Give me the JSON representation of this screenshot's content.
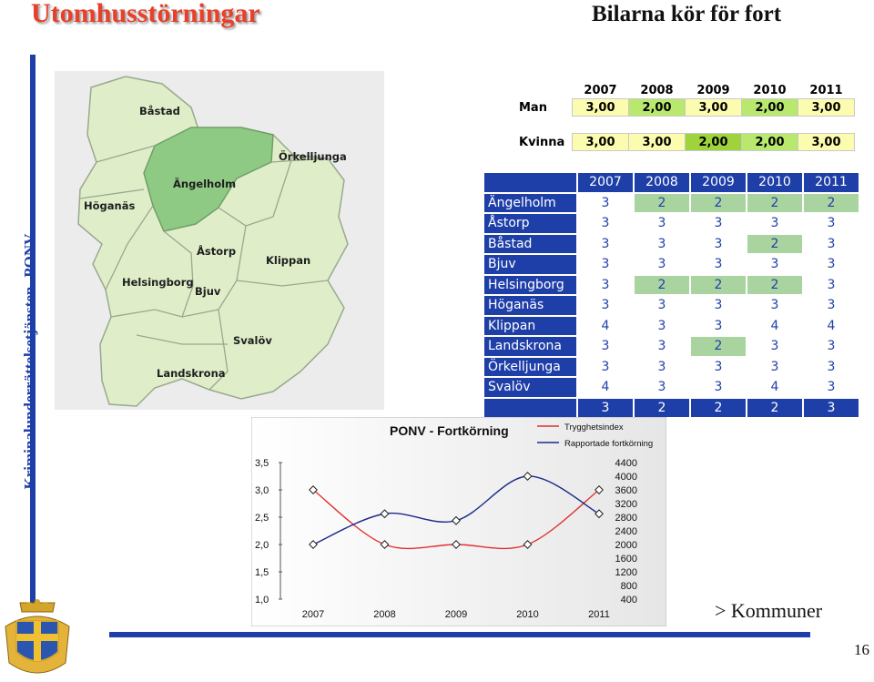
{
  "header": {
    "title": "Utomhusstörningar",
    "subtitle": "Bilarna kör för fort"
  },
  "side": {
    "vertical_label": "Kriminalunderrättelsetjänsten- PONV"
  },
  "footer": {
    "link": "> Kommuner",
    "page_number": "16"
  },
  "map": {
    "labels": [
      "Båstad",
      "Ängelholm",
      "Örkelljunga",
      "Höganäs",
      "Åstorp",
      "Klippan",
      "Helsingborg",
      "Bjuv",
      "Svalöv",
      "Landskrona"
    ],
    "highlighted": "Ängelholm",
    "colors": {
      "region": "#dfeec9",
      "highlight": "#8fca84",
      "border": "#9aa88f"
    }
  },
  "small_table": {
    "years": [
      "2007",
      "2008",
      "2009",
      "2010",
      "2011"
    ],
    "rows": [
      {
        "label": "Man",
        "values": [
          "3,00",
          "2,00",
          "3,00",
          "2,00",
          "3,00"
        ],
        "highlight": [
          false,
          true,
          false,
          true,
          false
        ]
      },
      {
        "label": "Kvinna",
        "values": [
          "3,00",
          "3,00",
          "2,00",
          "2,00",
          "3,00"
        ],
        "highlight": [
          false,
          false,
          true,
          true,
          false
        ]
      }
    ],
    "colors": {
      "cell": "#fcfcb0",
      "green": "#b8e86e"
    }
  },
  "municipality_table": {
    "years": [
      "2007",
      "2008",
      "2009",
      "2010",
      "2011"
    ],
    "rows": [
      {
        "name": "Ängelholm",
        "values": [
          "3",
          "2",
          "2",
          "2",
          "2"
        ],
        "highlight": [
          false,
          true,
          true,
          true,
          true
        ]
      },
      {
        "name": "Åstorp",
        "values": [
          "3",
          "3",
          "3",
          "3",
          "3"
        ],
        "highlight": [
          false,
          false,
          false,
          false,
          false
        ]
      },
      {
        "name": "Båstad",
        "values": [
          "3",
          "3",
          "3",
          "2",
          "3"
        ],
        "highlight": [
          false,
          false,
          false,
          true,
          false
        ]
      },
      {
        "name": "Bjuv",
        "values": [
          "3",
          "3",
          "3",
          "3",
          "3"
        ],
        "highlight": [
          false,
          false,
          false,
          false,
          false
        ]
      },
      {
        "name": "Helsingborg",
        "values": [
          "3",
          "2",
          "2",
          "2",
          "3"
        ],
        "highlight": [
          false,
          true,
          true,
          true,
          false
        ]
      },
      {
        "name": "Höganäs",
        "values": [
          "3",
          "3",
          "3",
          "3",
          "3"
        ],
        "highlight": [
          false,
          false,
          false,
          false,
          false
        ]
      },
      {
        "name": "Klippan",
        "values": [
          "4",
          "3",
          "3",
          "4",
          "4"
        ],
        "highlight": [
          false,
          false,
          false,
          false,
          false
        ]
      },
      {
        "name": "Landskrona",
        "values": [
          "3",
          "3",
          "2",
          "3",
          "3"
        ],
        "highlight": [
          false,
          false,
          true,
          false,
          false
        ]
      },
      {
        "name": "Örkelljunga",
        "values": [
          "3",
          "3",
          "3",
          "3",
          "3"
        ],
        "highlight": [
          false,
          false,
          false,
          false,
          false
        ]
      },
      {
        "name": "Svalöv",
        "values": [
          "4",
          "3",
          "3",
          "4",
          "3"
        ],
        "highlight": [
          false,
          false,
          false,
          false,
          false
        ]
      }
    ],
    "totals": [
      "3",
      "2",
      "2",
      "2",
      "3"
    ],
    "colors": {
      "header": "#1f3fa8",
      "green": "#a9d4a0"
    }
  },
  "chart_data": {
    "type": "line",
    "title": "PONV - Fortkörning",
    "categories": [
      "2007",
      "2008",
      "2009",
      "2010",
      "2011"
    ],
    "left_axis": {
      "ticks": [
        "3,5",
        "3,0",
        "2,5",
        "2,0",
        "1,5",
        "1,0"
      ],
      "ylim": [
        1.0,
        3.5
      ]
    },
    "right_axis": {
      "ticks": [
        "4400",
        "4000",
        "3600",
        "3200",
        "2800",
        "2400",
        "2000",
        "1600",
        "1200",
        "800",
        "400"
      ],
      "ylim": [
        400,
        4400
      ]
    },
    "series": [
      {
        "name": "Trygghetsindex",
        "values": [
          3.0,
          2.0,
          2.0,
          2.0,
          3.0
        ],
        "axis": "left",
        "color": "#e03030"
      },
      {
        "name": "Rapportade fortkörning",
        "values": [
          2000,
          2900,
          2700,
          4000,
          2900
        ],
        "axis": "right",
        "color": "#1a2a8c"
      }
    ],
    "legend": "top-right"
  }
}
